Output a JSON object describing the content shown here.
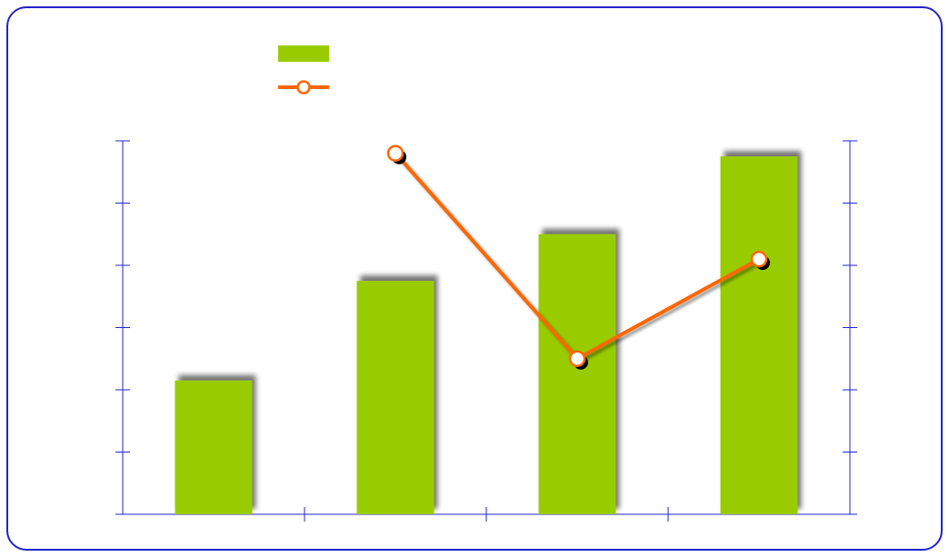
{
  "chart_data": {
    "type": "bar",
    "categories": [
      "",
      "",
      "",
      ""
    ],
    "colors": {
      "frame": "#2222cc",
      "axis": "#2222cc",
      "bar": "#99cc00",
      "line": "#ff6600",
      "marker_fill": "#ffffff",
      "shadow": "#000000"
    },
    "series": [
      {
        "type": "bar",
        "axis": "left",
        "values": [
          2.15,
          3.75,
          4.5,
          5.75
        ]
      },
      {
        "type": "line",
        "axis": "right",
        "values": [
          null,
          5.8,
          2.5,
          4.1
        ]
      }
    ],
    "ylim_left": [
      0,
      6
    ],
    "ylim_right": [
      0,
      6
    ],
    "y_ticks": 6,
    "legend": {
      "position": "top-center"
    },
    "grid": false
  }
}
